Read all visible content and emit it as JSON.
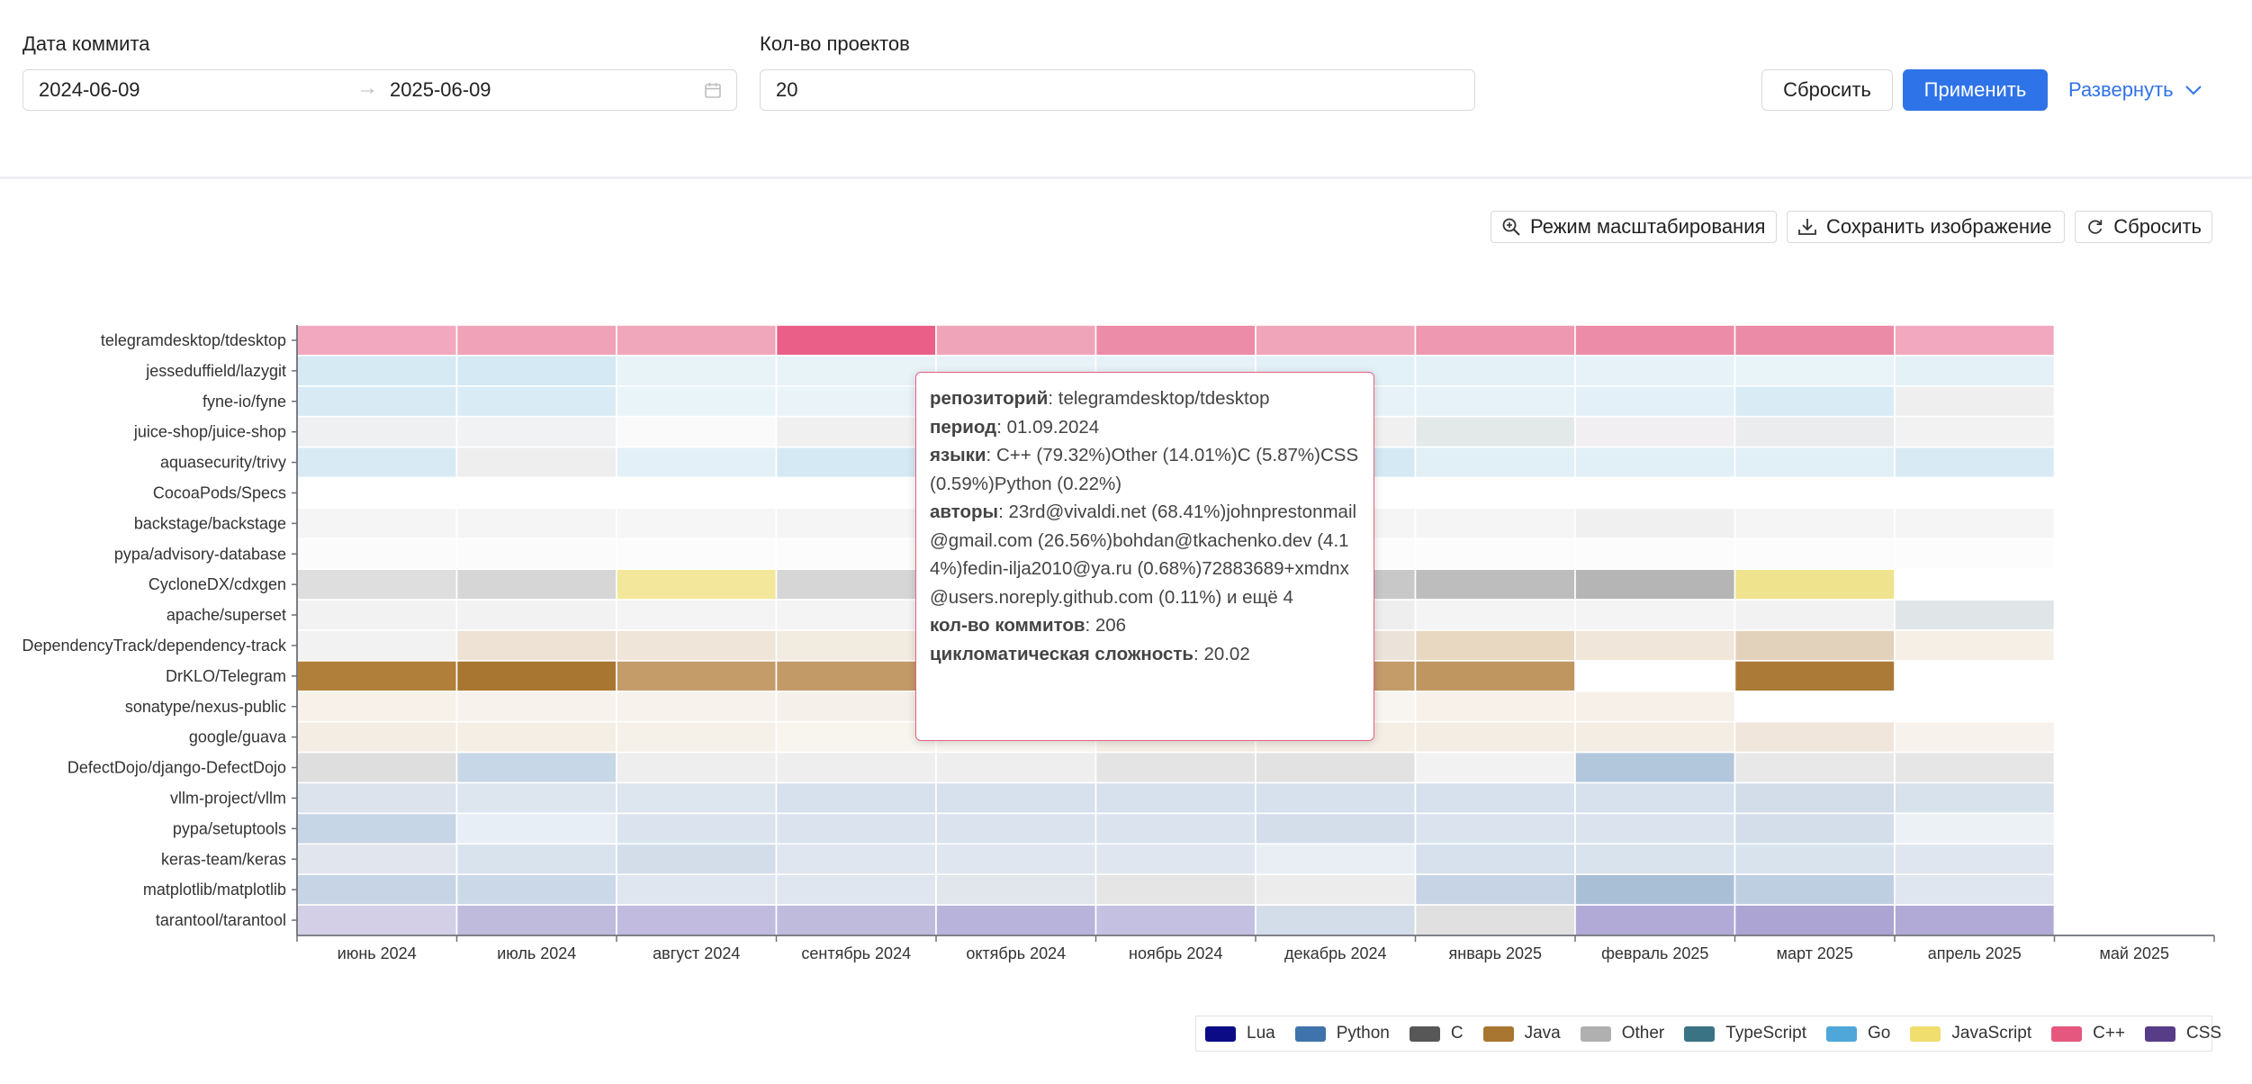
{
  "filters": {
    "date_label": "Дата коммита",
    "date_from": "2024-06-09",
    "date_arrow": "→",
    "date_to": "2025-06-09",
    "count_label": "Кол-во проектов",
    "count_value": "20",
    "reset_label": "Сбросить",
    "apply_label": "Применить",
    "expand_label": "Развернуть"
  },
  "toolbar": {
    "zoom_label": "Режим масштабирования",
    "save_label": "Сохранить изображение",
    "reset_label": "Сбросить"
  },
  "tooltip": {
    "repo_key": "репозиторий",
    "repo_val": "telegramdesktop/tdesktop",
    "period_key": "период",
    "period_val": "01.09.2024",
    "langs_key": "языки",
    "langs_val": "C++ (79.32%)Other (14.01%)C (5.87%)CSS (0.59%)Python (0.22%)",
    "authors_key": "авторы",
    "authors_val": "23rd@vivaldi.net (68.41%)johnprestonmail@gmail.com (26.56%)bohdan@tkachenko.dev (4.14%)fedin-ilja2010@ya.ru (0.68%)72883689+xmdnx@users.noreply.github.com (0.11%) и ещё 4",
    "commits_key": "кол-во коммитов",
    "commits_val": "206",
    "complexity_key": "цикломатическая сложность",
    "complexity_val": "20.02"
  },
  "chart_data": {
    "type": "heatmap",
    "title": "",
    "x_categories": [
      "июнь 2024",
      "июль 2024",
      "август 2024",
      "сентябрь 2024",
      "октябрь 2024",
      "ноябрь 2024",
      "декабрь 2024",
      "январь 2025",
      "февраль 2025",
      "март 2025",
      "апрель 2025",
      "май 2025"
    ],
    "y_categories": [
      "telegramdesktop/tdesktop",
      "jesseduffield/lazygit",
      "fyne-io/fyne",
      "juice-shop/juice-shop",
      "aquasecurity/trivy",
      "CocoaPods/Specs",
      "backstage/backstage",
      "pypa/advisory-database",
      "CycloneDX/cdxgen",
      "apache/superset",
      "DependencyTrack/dependency-track",
      "DrKLO/Telegram",
      "sonatype/nexus-public",
      "google/guava",
      "DefectDojo/django-DefectDojo",
      "vllm-project/vllm",
      "pypa/setuptools",
      "keras-team/keras",
      "matplotlib/matplotlib",
      "tarantool/tarantool"
    ],
    "row_language": [
      "C++",
      "Go",
      "Go",
      "Other",
      "Go",
      "Other",
      "Other",
      "Other",
      "Other",
      "Other",
      "Java",
      "Java",
      "Java",
      "Java",
      "Python",
      "Python",
      "Python",
      "Python",
      "Python",
      "Lua"
    ],
    "cell_colors": [
      [
        "#f2a9bf",
        "#efa2b8",
        "#f0a6bb",
        "#ea5f88",
        "#f0a4ba",
        "#ec8ca8",
        "#f0a5bb",
        "#ee98b1",
        "#ec8ca8",
        "#ec8ba7",
        "#f2a9bf",
        null
      ],
      [
        "#d6eaf4",
        "#d4e9f4",
        "#e8f3f8",
        "#e8f3f8",
        "#e8f3f8",
        "#e6f2f8",
        "#e2f0f7",
        "#e4f1f7",
        "#e6f2f8",
        "#e9f4f8",
        "#e4f1f7",
        null
      ],
      [
        "#d8ebf5",
        "#d9ecf5",
        "#e9f4f8",
        "#eaf4f8",
        "#eaf4f8",
        "#e8f3f8",
        "#e6f2f8",
        "#e6f2f8",
        "#e3f0f7",
        "#d9ecf5",
        "#efefef",
        null
      ],
      [
        "#eef0f2",
        "#f1f2f3",
        "#fafafa",
        "#f0f0f0",
        "#f0f0f0",
        "#f0f0f0",
        "#f0f0f0",
        "#e3e8e8",
        "#f2eff3",
        "#eaeced",
        "#f2f2f2",
        null
      ],
      [
        "#d8ebf5",
        "#eeeeee",
        "#e3f0f7",
        "#d4e9f4",
        "#d4e9f4",
        "#d4e9f4",
        "#d4e9f4",
        "#e1eff6",
        "#e1eff6",
        "#e1eff6",
        "#d8ebf5",
        null
      ],
      [
        "#ffffff",
        "#ffffff",
        "#ffffff",
        "#ffffff",
        "#ffffff",
        "#ffffff",
        "#ffffff",
        "#ffffff",
        "#ffffff",
        "#ffffff",
        "#ffffff",
        null
      ],
      [
        "#f5f5f5",
        "#f5f5f5",
        "#f6f6f6",
        "#f5f5f5",
        "#f5f5f5",
        "#f5f5f5",
        "#f5f5f5",
        "#f5f5f5",
        "#f0f0f0",
        "#f5f5f5",
        "#f5f5f5",
        null
      ],
      [
        "#fbfbfb",
        "#fbfbfb",
        "#fcfcfc",
        "#fcfcfc",
        "#fcfcfc",
        "#fcfcfc",
        "#fcfcfc",
        "#fcfcfc",
        "#fcfcfc",
        "#fcfcfc",
        "#fcfcfc",
        null
      ],
      [
        "#dedede",
        "#d6d6d6",
        "#f2e79a",
        "#d6d6d6",
        "#d0d0d0",
        "#cccccc",
        "#c8c8c8",
        "#bdbdbd",
        "#b5b5b5",
        "#f0e38e",
        null,
        null
      ],
      [
        "#f2f2f2",
        "#f2f2f2",
        "#f4f4f4",
        "#f4f4f4",
        "#f4f4f4",
        "#f2f2f2",
        "#eeeeee",
        "#f4f4f4",
        "#f4f4f4",
        "#f2f2f2",
        "#e0e6e8",
        null
      ],
      [
        "#f2f2f2",
        "#ede2d4",
        "#efe5d8",
        "#f2ebe0",
        "#f2ebe0",
        "#efe5d8",
        "#ebe3d9",
        "#e8d8c2",
        "#f0e6d9",
        "#e3d2bb",
        "#f5efe6",
        null
      ],
      [
        "#b0803a",
        "#a97632",
        "#c49c6a",
        "#c29a68",
        "#c29a68",
        "#c29a68",
        "#c49c6a",
        "#c09660",
        null,
        "#ab7a37",
        null,
        null
      ],
      [
        "#f7f1ea",
        "#f7f2ec",
        "#f7f2ec",
        "#f5f0e9",
        "#f6f1eb",
        "#f6f1eb",
        "#f8f4ef",
        "#f7f1ea",
        "#f6f0e9",
        null,
        null,
        null
      ],
      [
        "#f3ede3",
        "#f4eee5",
        "#f5f0e8",
        "#f8f4ee",
        "#f8f4ee",
        "#f4eee5",
        "#f4eee5",
        "#f3ede3",
        "#f3ede3",
        "#f0e6db",
        "#f7f2ec",
        null
      ],
      [
        "#dedede",
        "#c7d7e7",
        "#eeeeee",
        "#eeeeee",
        "#eeeeee",
        "#e4e4e4",
        "#e2e2e2",
        "#f2f2f2",
        "#b2c6dc",
        "#e8e8e8",
        "#e6e6e6",
        null
      ],
      [
        "#dce3ec",
        "#dde5ee",
        "#dde5ee",
        "#d6e1ed",
        "#d6e1ed",
        "#d6e1ed",
        "#d6e1ed",
        "#d6e1ed",
        "#d6e1ed",
        "#d2dde9",
        "#d8e2ec",
        null
      ],
      [
        "#c6d6e6",
        "#e8eef5",
        "#dbe4ee",
        "#dbe4ee",
        "#dbe4ee",
        "#dbe4ee",
        "#d3deea",
        "#dbe4ee",
        "#dbe4ee",
        "#d3deea",
        "#ecf1f6",
        null
      ],
      [
        "#e1e6ee",
        "#d9e3ee",
        "#d2dde9",
        "#dfe6ef",
        "#dfe6ef",
        "#dfe6ef",
        "#e8eef4",
        "#d6e1ed",
        "#d9e3ee",
        "#d9e3ee",
        "#dfe6ef",
        null
      ],
      [
        "#c6d4e5",
        "#cbd8e8",
        "#dfe6ef",
        "#dfe6ef",
        "#e1e6ec",
        "#e5e5e5",
        "#ececec",
        "#c6d4e5",
        "#a9bfd6",
        "#bfcfe2",
        "#dfe6ef",
        null
      ],
      [
        "#d2cfe6",
        "#bebbdc",
        "#c0bbdf",
        "#bebbdc",
        "#b8b3db",
        "#c4c0e1",
        "#d3ddea",
        "#e0e0e0",
        "#b1aad7",
        "#aca4d3",
        "#b1aad7",
        null
      ]
    ],
    "legend": [
      {
        "name": "Lua",
        "color": "#0b0b86"
      },
      {
        "name": "Python",
        "color": "#3f73ab"
      },
      {
        "name": "C",
        "color": "#575757"
      },
      {
        "name": "Java",
        "color": "#a87631"
      },
      {
        "name": "Other",
        "color": "#b0b0b0"
      },
      {
        "name": "TypeScript",
        "color": "#3a7384"
      },
      {
        "name": "Go",
        "color": "#4fa6d8"
      },
      {
        "name": "JavaScript",
        "color": "#f0de6e"
      },
      {
        "name": "C++",
        "color": "#e5577e"
      },
      {
        "name": "CSS",
        "color": "#573c87"
      }
    ],
    "legend_position": "bottom-right",
    "grid": false
  }
}
